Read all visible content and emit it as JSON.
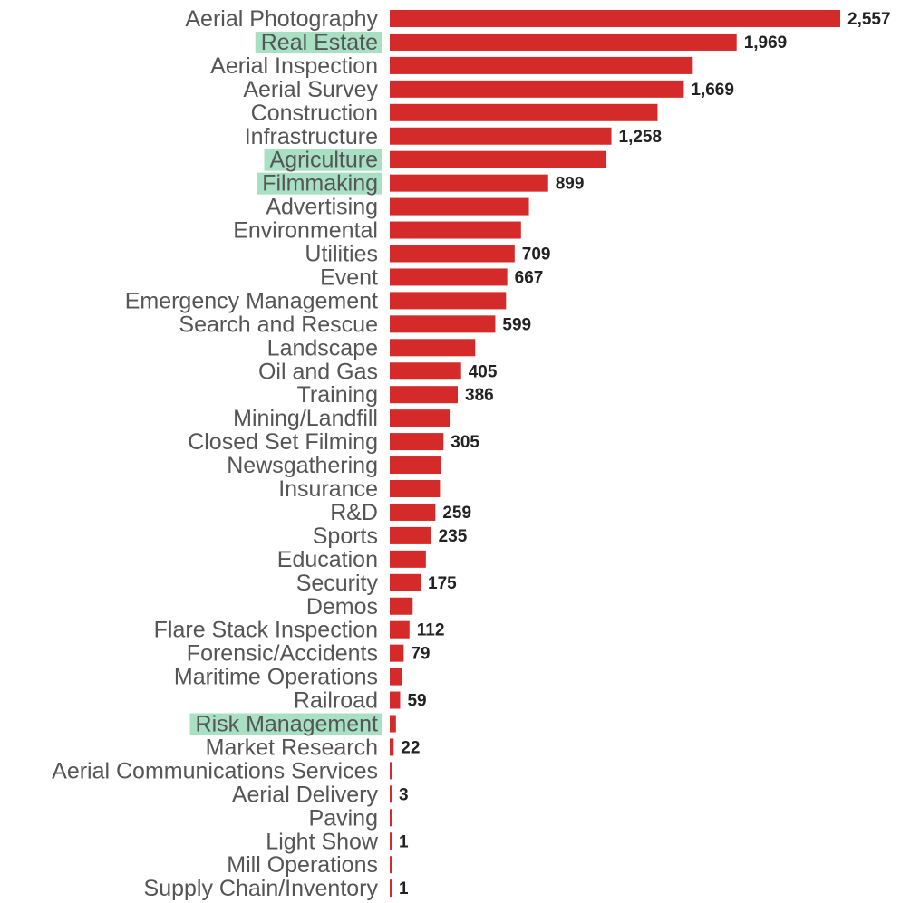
{
  "chart_data": {
    "type": "bar",
    "orientation": "horizontal",
    "bar_color": "#d42a29",
    "highlight_color": "#a8e0c4",
    "categories": [
      "Aerial Photography",
      "Real Estate",
      "Aerial Inspection",
      "Aerial Survey",
      "Construction",
      "Infrastructure",
      "Agriculture",
      "Filmmaking",
      "Advertising",
      "Environmental",
      "Utilities",
      "Event",
      "Emergency Management",
      "Search and Rescue",
      "Landscape",
      "Oil and Gas",
      "Training",
      "Mining/Landfill",
      "Closed Set Filming",
      "Newsgathering",
      "Insurance",
      "R&D",
      "Sports",
      "Education",
      "Security",
      "Demos",
      "Flare Stack Inspection",
      "Forensic/Accidents",
      "Maritime Operations",
      "Railroad",
      "Risk Management",
      "Market Research",
      "Aerial Communications Services",
      "Aerial Delivery",
      "Paving",
      "Light Show",
      "Mill Operations",
      "Supply Chain/Inventory"
    ],
    "values": [
      2557,
      1969,
      1720,
      1669,
      1520,
      1258,
      1230,
      899,
      790,
      745,
      709,
      667,
      660,
      599,
      485,
      405,
      386,
      345,
      305,
      290,
      285,
      259,
      235,
      205,
      175,
      130,
      112,
      79,
      72,
      59,
      35,
      22,
      12,
      3,
      2,
      1,
      1,
      1
    ],
    "labels": [
      "2,557",
      "1,969",
      "",
      "1,669",
      "",
      "1,258",
      "",
      "899",
      "",
      "",
      "709",
      "667",
      "",
      "599",
      "",
      "405",
      "386",
      "",
      "305",
      "",
      "",
      "259",
      "235",
      "",
      "175",
      "",
      "112",
      "79",
      "",
      "59",
      "",
      "22",
      "",
      "3",
      "",
      "1",
      "",
      "1"
    ],
    "highlighted": [
      "Real Estate",
      "Agriculture",
      "Filmmaking",
      "Risk Management"
    ],
    "xlim": [
      0,
      2557
    ]
  }
}
